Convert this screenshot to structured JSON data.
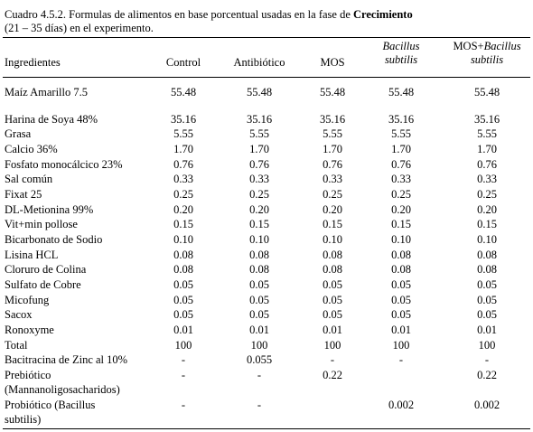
{
  "caption": {
    "prefix": "Cuadro 4.5.2.  Formulas de alimentos en base porcentual usadas en la fase de ",
    "bold": "Crecimiento",
    "line2": "(21 – 35 días) en el experimento."
  },
  "headers": {
    "ingredients": "Ingredientes",
    "control": "Control",
    "antibiotic": "Antibiótico",
    "mos": "MOS",
    "bacillus_line1": "Bacillus",
    "bacillus_line2": "subtilis",
    "mosbac_line1_plain": "MOS+",
    "mosbac_line1_italic": "Bacillus",
    "mosbac_line2": "subtilis"
  },
  "rows": [
    {
      "name": "Maíz Amarillo 7.5",
      "values": [
        "55.48",
        "55.48",
        "55.48",
        "55.48",
        "55.48"
      ]
    },
    {
      "name": "Harina de Soya 48%",
      "values": [
        "35.16",
        "35.16",
        "35.16",
        "35.16",
        "35.16"
      ]
    },
    {
      "name": "Grasa",
      "values": [
        "5.55",
        "5.55",
        "5.55",
        "5.55",
        "5.55"
      ]
    },
    {
      "name": "Calcio 36%",
      "values": [
        "1.70",
        "1.70",
        "1.70",
        "1.70",
        "1.70"
      ]
    },
    {
      "name": "Fosfato monocálcico 23%",
      "values": [
        "0.76",
        "0.76",
        "0.76",
        "0.76",
        "0.76"
      ]
    },
    {
      "name": "Sal común",
      "values": [
        "0.33",
        "0.33",
        "0.33",
        "0.33",
        "0.33"
      ]
    },
    {
      "name": "Fixat 25",
      "values": [
        "0.25",
        "0.25",
        "0.25",
        "0.25",
        "0.25"
      ]
    },
    {
      "name": "DL-Metionina 99%",
      "values": [
        "0.20",
        "0.20",
        "0.20",
        "0.20",
        "0.20"
      ]
    },
    {
      "name": "Vit+min pollose",
      "values": [
        "0.15",
        "0.15",
        "0.15",
        "0.15",
        "0.15"
      ]
    },
    {
      "name": "Bicarbonato de Sodio",
      "values": [
        "0.10",
        "0.10",
        "0.10",
        "0.10",
        "0.10"
      ]
    },
    {
      "name": "Lisina HCL",
      "values": [
        "0.08",
        "0.08",
        "0.08",
        "0.08",
        "0.08"
      ]
    },
    {
      "name": "Cloruro de Colina",
      "values": [
        "0.08",
        "0.08",
        "0.08",
        "0.08",
        "0.08"
      ]
    },
    {
      "name": "Sulfato de Cobre",
      "values": [
        "0.05",
        "0.05",
        "0.05",
        "0.05",
        "0.05"
      ]
    },
    {
      "name": "Micofung",
      "values": [
        "0.05",
        "0.05",
        "0.05",
        "0.05",
        "0.05"
      ]
    },
    {
      "name": "Sacox",
      "values": [
        "0.05",
        "0.05",
        "0.05",
        "0.05",
        "0.05"
      ]
    },
    {
      "name": "Ronoxyme",
      "values": [
        "0.01",
        "0.01",
        "0.01",
        "0.01",
        "0.01"
      ]
    },
    {
      "name": "Total",
      "values": [
        "100",
        "100",
        "100",
        "100",
        "100"
      ]
    },
    {
      "name": "Bacitracina de Zinc al 10%",
      "values": [
        "-",
        "0.055",
        "-",
        "-",
        "-"
      ]
    }
  ],
  "multiline_rows": [
    {
      "name_line1": "Prebiótico",
      "name_line2": "(Mannanoligosacharidos)",
      "values": [
        "-",
        "-",
        "0.22",
        "",
        "0.22"
      ]
    },
    {
      "name_line1": "Probiótico (Bacillus",
      "name_line2": "subtilis)",
      "values": [
        "-",
        "-",
        "",
        "0.002",
        "0.002"
      ]
    }
  ]
}
